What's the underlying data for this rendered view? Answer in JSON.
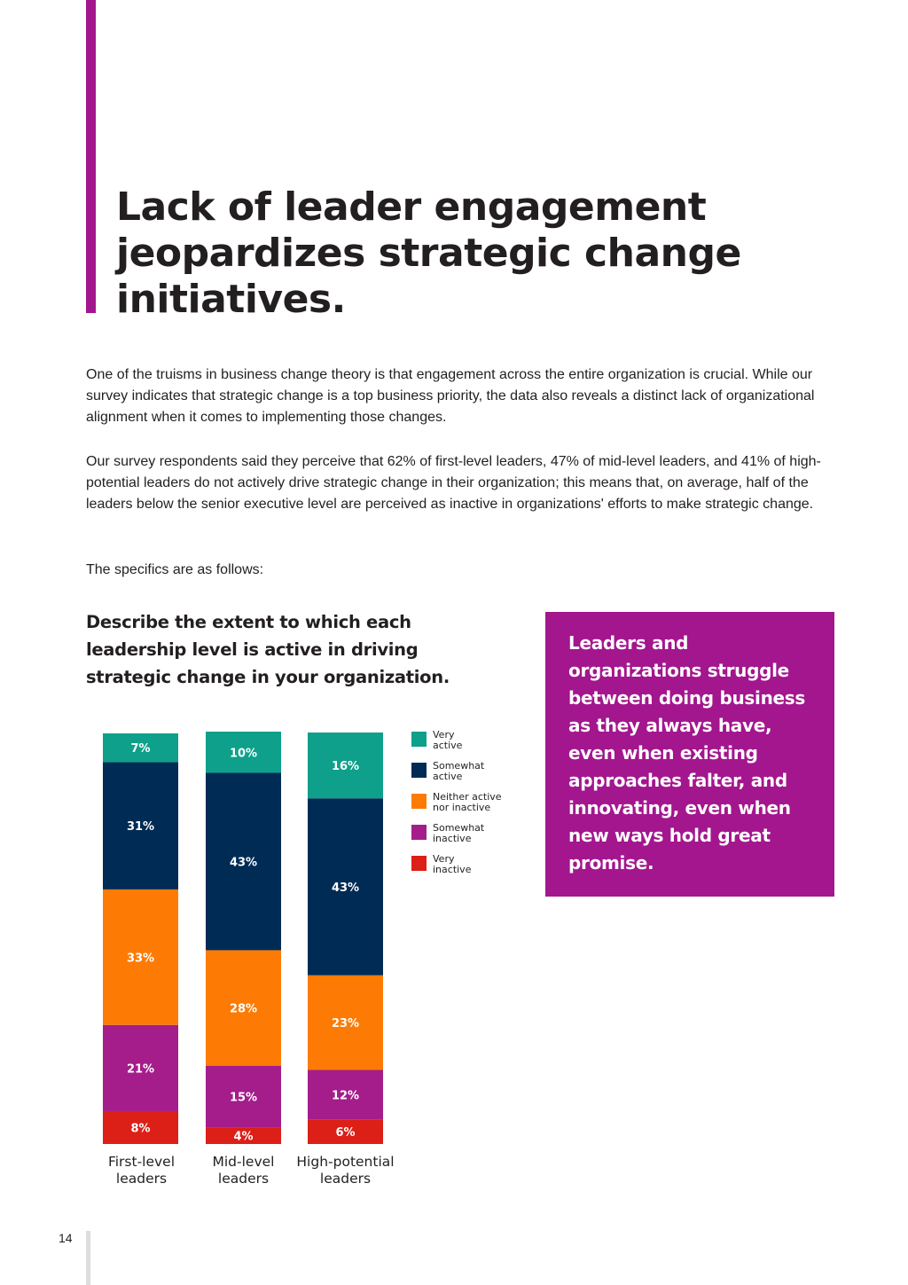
{
  "page": {
    "title": "Lack of leader engagement jeopardizes strategic change initiatives.",
    "paragraphs": [
      "One of the truisms in business change theory is that engagement across the entire organization is crucial. While our survey indicates that strategic change is a top business priority, the data also reveals a distinct lack of organizational alignment when it comes to implementing those changes.",
      "Our survey respondents said they perceive that 62% of first-level leaders, 47% of mid-level leaders, and 41% of high-potential leaders do not actively drive strategic change in their organization; this means that, on average, half of the leaders below the senior executive level are perceived as inactive in organizations' efforts to make strategic change.",
      "The specifics are as follows:"
    ],
    "callout": "Leaders and organizations struggle between doing business as they always have, even when existing approaches falter, and innovating, even when new ways hold great promise.",
    "page_number": "14",
    "colors": {
      "accent": "#a3168e"
    }
  },
  "chart_data": {
    "type": "bar",
    "stacked": true,
    "title": "Describe the extent to which each leadership level is active in driving strategic change in your organization.",
    "categories": [
      {
        "line1": "First-level",
        "line2": "leaders"
      },
      {
        "line1": "Mid-level",
        "line2": "leaders"
      },
      {
        "line1": "High-potential",
        "line2": "leaders"
      }
    ],
    "value_suffix": "%",
    "ylim": [
      0,
      100
    ],
    "series": [
      {
        "name": "Very active",
        "legend_lines": [
          "Very",
          "active"
        ],
        "color": "#0ea08a",
        "values": [
          7,
          10,
          16
        ]
      },
      {
        "name": "Somewhat active",
        "legend_lines": [
          "Somewhat",
          "active"
        ],
        "color": "#002b55",
        "values": [
          31,
          43,
          43
        ]
      },
      {
        "name": "Neither active nor inactive",
        "legend_lines": [
          "Neither active",
          "nor inactive"
        ],
        "color": "#fd7b04",
        "values": [
          33,
          28,
          23
        ]
      },
      {
        "name": "Somewhat inactive",
        "legend_lines": [
          "Somewhat",
          "inactive"
        ],
        "color": "#a41d8b",
        "values": [
          21,
          15,
          12
        ]
      },
      {
        "name": "Very inactive",
        "legend_lines": [
          "Very",
          "inactive"
        ],
        "color": "#dc1f17",
        "values": [
          8,
          4,
          6
        ]
      }
    ],
    "legend_position": "right",
    "grid": false
  }
}
